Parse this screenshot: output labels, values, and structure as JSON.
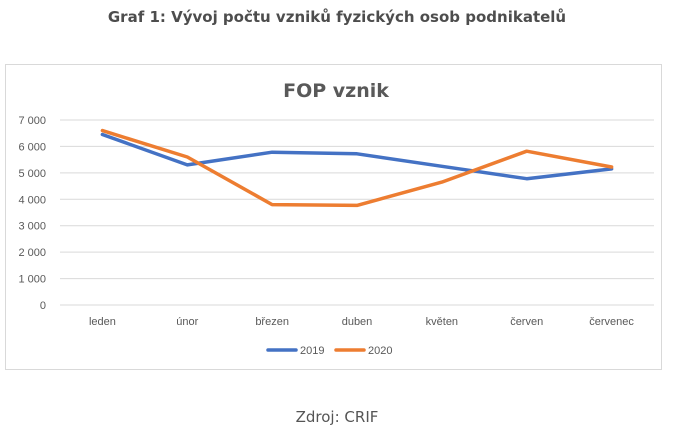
{
  "heading": "Graf 1: Vývoj počtu vzniků fyzických osob podnikatelů",
  "source": "Zdroj: CRIF",
  "chart_data": {
    "type": "line",
    "title": "FOP vznik",
    "xlabel": "",
    "ylabel": "",
    "categories": [
      "leden",
      "únor",
      "březen",
      "duben",
      "květen",
      "červen",
      "červenec"
    ],
    "series": [
      {
        "name": "2019",
        "color": "#4472c4",
        "values": [
          6450,
          5300,
          5780,
          5720,
          5250,
          4780,
          5150
        ]
      },
      {
        "name": "2020",
        "color": "#ed7d31",
        "values": [
          6600,
          5600,
          3800,
          3770,
          4650,
          5820,
          5220
        ]
      }
    ],
    "ylim": [
      0,
      7000
    ],
    "yticks": [
      0,
      1000,
      2000,
      3000,
      4000,
      5000,
      6000,
      7000
    ],
    "ytick_labels": [
      "0",
      "1 000",
      "2 000",
      "3 000",
      "4 000",
      "5 000",
      "6 000",
      "7 000"
    ],
    "grid": true,
    "legend_position": "bottom"
  }
}
